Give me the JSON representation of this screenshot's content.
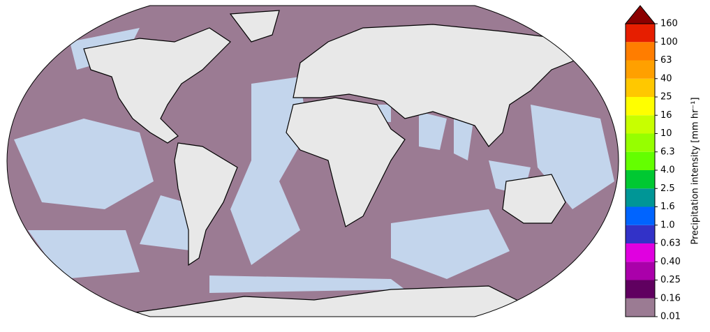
{
  "colorbar": {
    "label": "Precipitation intensity [mm hr⁻¹]",
    "ticks": [
      0.01,
      0.16,
      0.25,
      {
        "value": 0.4,
        "label": "0.40"
      },
      0.63,
      {
        "value": 1,
        "label": "1.0"
      },
      1.6,
      2.5,
      {
        "value": 4,
        "label": "4.0"
      },
      6.3,
      10,
      16,
      25,
      40,
      63,
      100,
      160
    ],
    "colors": [
      "#9b7b93",
      "#600060",
      "#aa00aa",
      "#e000e0",
      "#3232c8",
      "#0064ff",
      "#009696",
      "#00c832",
      "#64ff00",
      "#96ff00",
      "#c8ff00",
      "#ffff00",
      "#ffc800",
      "#ffa000",
      "#ff7d00",
      "#e61e00"
    ],
    "extend_color": "#8b0000"
  }
}
